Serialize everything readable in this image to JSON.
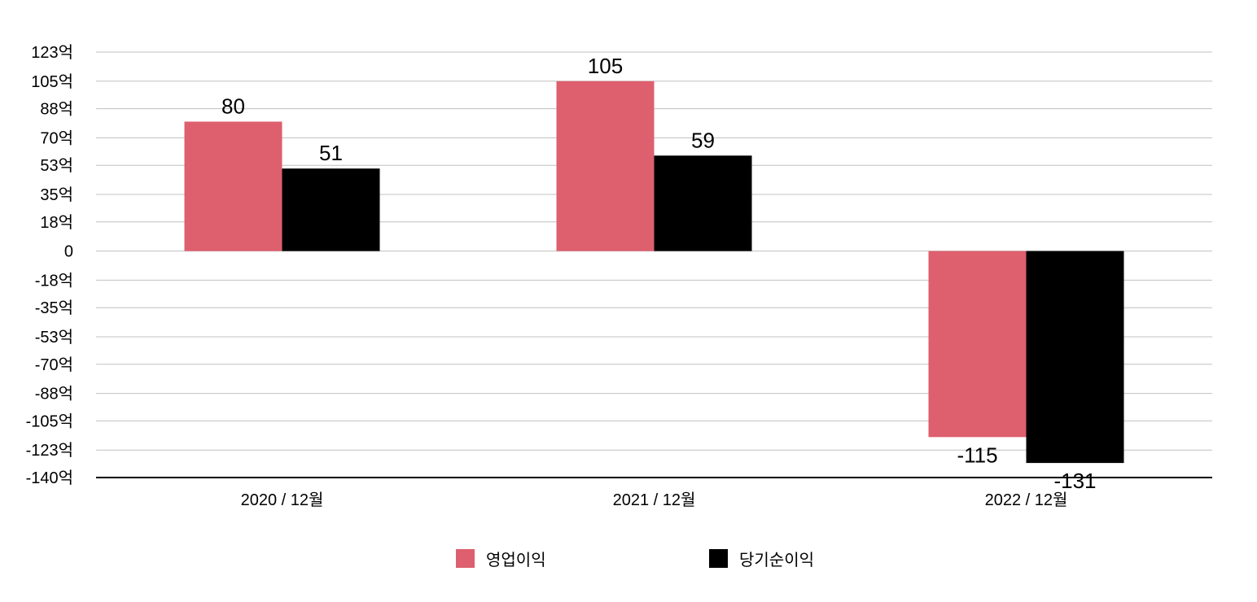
{
  "chart_data": {
    "type": "bar",
    "categories": [
      "2020 / 12월",
      "2021 / 12월",
      "2022 / 12월"
    ],
    "series": [
      {
        "name": "영업이익",
        "values": [
          80,
          105,
          -115
        ],
        "color": "#de5f6e"
      },
      {
        "name": "당기순이익",
        "values": [
          51,
          59,
          -131
        ],
        "color": "#000000"
      }
    ],
    "y_ticks": [
      "123억",
      "105억",
      "88억",
      "70억",
      "53억",
      "35억",
      "18억",
      "0",
      "-18억",
      "-35억",
      "-53억",
      "-70억",
      "-88억",
      "-105억",
      "-123억",
      "-140억"
    ],
    "y_tick_values": [
      123,
      105,
      88,
      70,
      53,
      35,
      18,
      0,
      -18,
      -35,
      -53,
      -70,
      -88,
      -105,
      -123,
      -140
    ],
    "ylim": [
      -140,
      123
    ],
    "grid": true,
    "legend_position": "bottom-center",
    "data_labels": true,
    "xlabel": "",
    "ylabel": "",
    "title": ""
  }
}
